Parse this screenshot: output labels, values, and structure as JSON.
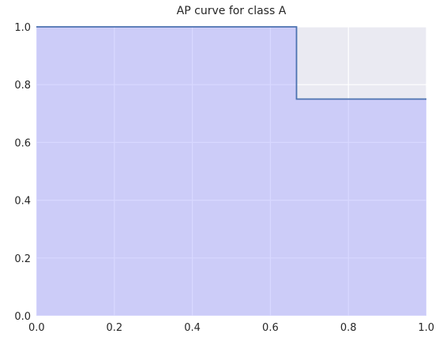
{
  "chart_data": {
    "type": "area",
    "title": "AP curve for class A",
    "xlabel": "",
    "ylabel": "",
    "xlim": [
      0,
      1
    ],
    "ylim": [
      0,
      1
    ],
    "grid": true,
    "x_ticks": [
      "0.0",
      "0.2",
      "0.4",
      "0.6",
      "0.8",
      "1.0"
    ],
    "y_ticks": [
      "0.0",
      "0.2",
      "0.4",
      "0.6",
      "0.8",
      "1.0"
    ],
    "step_where": "post",
    "series": [
      {
        "x": [
          0.0,
          0.667,
          1.0
        ],
        "y": [
          1.0,
          0.75,
          0.75
        ]
      }
    ],
    "colors": {
      "background": "#eaeaf2",
      "grid": "#ffffff",
      "line": "#4c72b0",
      "fill": "#a8a8ff"
    }
  }
}
